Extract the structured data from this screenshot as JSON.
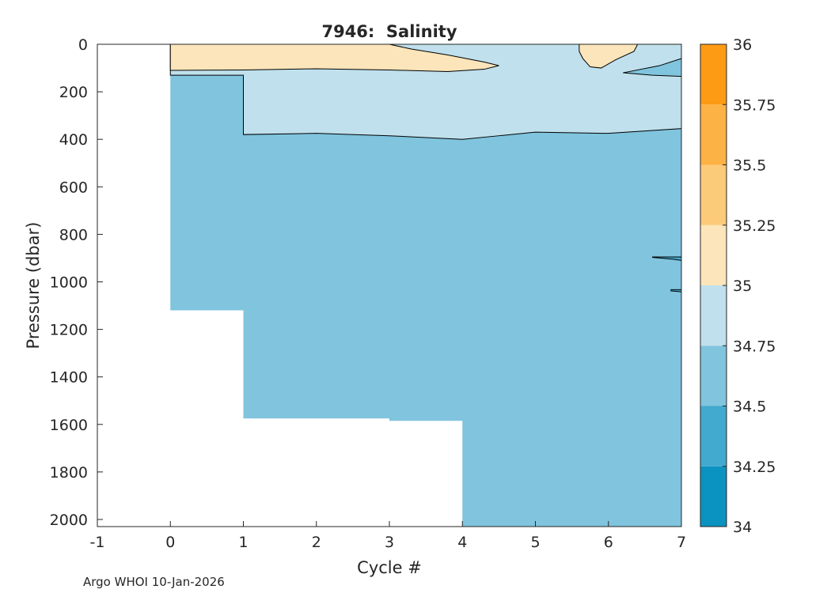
{
  "chart_data": {
    "type": "heatmap",
    "title": "7946:  Salinity",
    "xlabel": "Cycle #",
    "ylabel": "Pressure (dbar)",
    "xlim": [
      -1,
      7
    ],
    "ylim": [
      0,
      2030
    ],
    "y_reversed": true,
    "xticks": [
      -1,
      0,
      1,
      2,
      3,
      4,
      5,
      6,
      7
    ],
    "yticks": [
      0,
      200,
      400,
      600,
      800,
      1000,
      1200,
      1400,
      1600,
      1800,
      2000
    ],
    "colorbar": {
      "range": [
        34,
        36
      ],
      "ticks": [
        "34",
        "34.25",
        "34.5",
        "34.75",
        "35",
        "35.25",
        "35.5",
        "35.75",
        "36"
      ],
      "bins": [
        {
          "from": 34.0,
          "to": 34.25,
          "color": "#0a93c0"
        },
        {
          "from": 34.25,
          "to": 34.5,
          "color": "#42a9cf"
        },
        {
          "from": 34.5,
          "to": 34.75,
          "color": "#80c4de"
        },
        {
          "from": 34.75,
          "to": 35.0,
          "color": "#bfe0ec"
        },
        {
          "from": 35.0,
          "to": 35.25,
          "color": "#fce5ba"
        },
        {
          "from": 35.25,
          "to": 35.5,
          "color": "#fccb7a"
        },
        {
          "from": 35.5,
          "to": 35.75,
          "color": "#fdb245"
        },
        {
          "from": 35.75,
          "to": 36.0,
          "color": "#fd9b14"
        }
      ]
    },
    "profiles": [
      {
        "cycle": 0,
        "max_pressure": 130
      },
      {
        "cycle": 1,
        "max_pressure": 1120
      },
      {
        "cycle": 2,
        "max_pressure": 1575
      },
      {
        "cycle": 3,
        "max_pressure": 1575
      },
      {
        "cycle": 4,
        "max_pressure": 1585
      },
      {
        "cycle": 5,
        "max_pressure": 2030
      },
      {
        "cycle": 6,
        "max_pressure": 2030
      },
      {
        "cycle": 7,
        "max_pressure": 2030
      }
    ],
    "regions": [
      {
        "label": "34.75-35 layer",
        "value_range": [
          34.75,
          35.0
        ],
        "points": [
          [
            0,
            0
          ],
          [
            7,
            0
          ],
          [
            7,
            355
          ],
          [
            6,
            375
          ],
          [
            5,
            370
          ],
          [
            4.5,
            385
          ],
          [
            4,
            400
          ],
          [
            3,
            385
          ],
          [
            2,
            375
          ],
          [
            1,
            380
          ],
          [
            1,
            130
          ],
          [
            0,
            130
          ]
        ]
      },
      {
        "label": "35-35.25 near-surface lens (cycles 0-4.5)",
        "value_range": [
          35.0,
          35.25
        ],
        "points": [
          [
            0,
            0
          ],
          [
            3,
            0
          ],
          [
            3.3,
            20
          ],
          [
            3.8,
            45
          ],
          [
            4.3,
            75
          ],
          [
            4.5,
            90
          ],
          [
            4.3,
            105
          ],
          [
            3.8,
            115
          ],
          [
            3,
            108
          ],
          [
            2,
            103
          ],
          [
            1,
            108
          ],
          [
            0,
            110
          ]
        ]
      },
      {
        "label": "35-35.25 surface lens (cycle ~6)",
        "value_range": [
          35.0,
          35.25
        ],
        "points": [
          [
            5.6,
            0
          ],
          [
            6.4,
            0
          ],
          [
            6.35,
            30
          ],
          [
            6.1,
            65
          ],
          [
            5.9,
            100
          ],
          [
            5.75,
            95
          ],
          [
            5.65,
            60
          ],
          [
            5.6,
            30
          ]
        ]
      },
      {
        "label": "34.5-34.75 intrusion",
        "value_range": [
          34.5,
          34.75
        ],
        "points": [
          [
            7,
            60
          ],
          [
            6.7,
            90
          ],
          [
            6.2,
            120
          ],
          [
            6.6,
            130
          ],
          [
            7,
            135
          ]
        ]
      }
    ],
    "contour_marks": [
      {
        "points": [
          [
            6.6,
            895
          ],
          [
            7,
            895
          ],
          [
            7,
            910
          ],
          [
            6.9,
            905
          ],
          [
            6.6,
            897
          ]
        ]
      },
      {
        "points": [
          [
            6.85,
            1033
          ],
          [
            7,
            1033
          ],
          [
            7,
            1042
          ],
          [
            6.85,
            1038
          ]
        ]
      }
    ],
    "annotation": "Argo WHOI 10-Jan-2026"
  }
}
